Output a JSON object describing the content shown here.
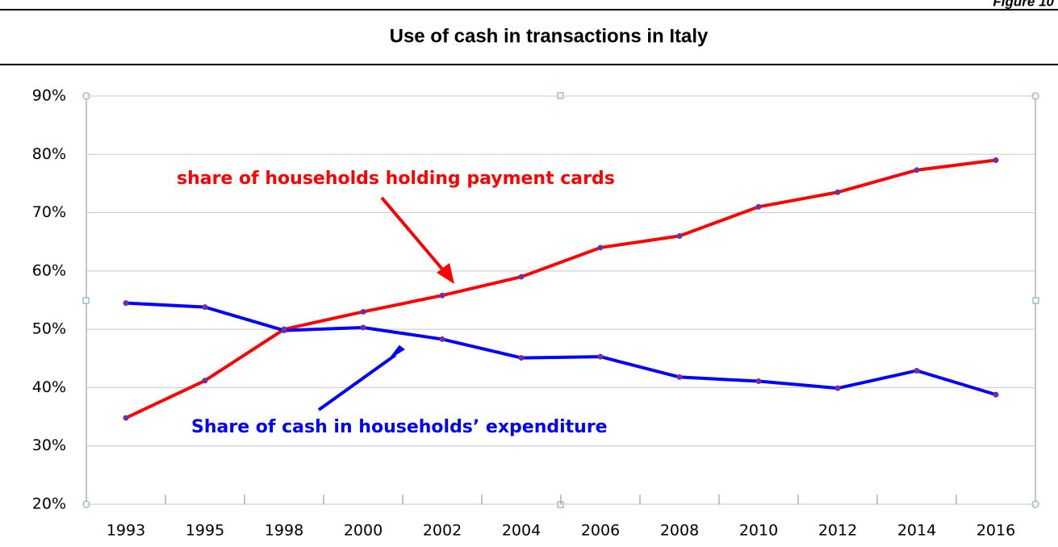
{
  "figure_label": "Figure 10",
  "chart_data": {
    "type": "line",
    "title": "Use of cash in transactions in Italy",
    "categories": [
      "1993",
      "1995",
      "1998",
      "2000",
      "2002",
      "2004",
      "2006",
      "2008",
      "2010",
      "2012",
      "2014",
      "2016"
    ],
    "series": [
      {
        "name": "share of households holding payment cards",
        "color": "#ff0000",
        "values": [
          34.8,
          41.2,
          50,
          53,
          55.8,
          59,
          64,
          66,
          71,
          73.5,
          77.3,
          79
        ]
      },
      {
        "name": "Share of cash in households’ expenditure",
        "color": "#0000ff",
        "values": [
          54.5,
          53.8,
          49.8,
          50.3,
          48.3,
          45.1,
          45.3,
          41.8,
          41.1,
          39.9,
          42.9,
          38.8
        ]
      }
    ],
    "ylim": [
      20,
      90
    ],
    "yticks": [
      {
        "value": 20,
        "label": "20%"
      },
      {
        "value": 30,
        "label": "30%"
      },
      {
        "value": 40,
        "label": "40%"
      },
      {
        "value": 50,
        "label": "50%"
      },
      {
        "value": 60,
        "label": "60%"
      },
      {
        "value": 70,
        "label": "70%"
      },
      {
        "value": 80,
        "label": "80%"
      },
      {
        "value": 90,
        "label": "90%"
      }
    ],
    "grid": true
  }
}
